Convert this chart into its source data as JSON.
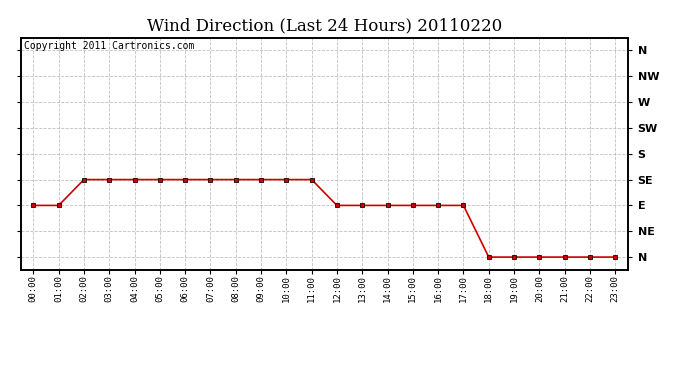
{
  "title": "Wind Direction (Last 24 Hours) 20110220",
  "copyright_text": "Copyright 2011 Cartronics.com",
  "background_color": "#ffffff",
  "plot_bg_color": "#ffffff",
  "grid_color": "#b0b0b0",
  "line_color": "#cc0000",
  "marker_color": "#cc0000",
  "marker_edge_color": "#220000",
  "ytick_labels_right": [
    "N",
    "NW",
    "W",
    "SW",
    "S",
    "SE",
    "E",
    "NE",
    "N"
  ],
  "ytick_values": [
    8,
    7,
    6,
    5,
    4,
    3,
    2,
    1,
    0
  ],
  "hours": [
    0,
    1,
    2,
    3,
    4,
    5,
    6,
    7,
    8,
    9,
    10,
    11,
    12,
    13,
    14,
    15,
    16,
    17,
    18,
    19,
    20,
    21,
    22,
    23
  ],
  "wind_data": [
    2,
    2,
    3,
    3,
    3,
    3,
    3,
    3,
    3,
    3,
    3,
    3,
    2,
    2,
    2,
    2,
    2,
    2,
    0,
    0,
    0,
    0,
    0,
    0
  ],
  "xlim": [
    -0.5,
    23.5
  ],
  "ylim": [
    -0.5,
    8.5
  ],
  "figsize": [
    6.9,
    3.75
  ],
  "dpi": 100,
  "title_fontsize": 12,
  "copyright_fontsize": 7,
  "ytick_fontsize": 8,
  "xtick_fontsize": 6.5
}
